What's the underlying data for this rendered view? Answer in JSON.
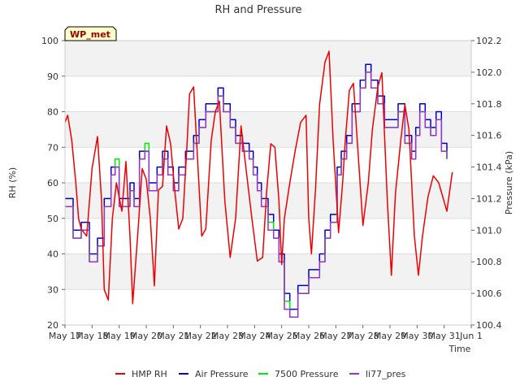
{
  "chart_data": {
    "type": "line",
    "title": "RH and Pressure",
    "xlabel": "Time",
    "ylabel": "RH (%)",
    "y2label": "Pressure (kPa)",
    "badge": "WP_met",
    "x_ticks": [
      "May 17",
      "May 18",
      "May 19",
      "May 20",
      "May 21",
      "May 22",
      "May 23",
      "May 24",
      "May 25",
      "May 26",
      "May 27",
      "May 28",
      "May 29",
      "May 30",
      "May 31",
      "Jun 1"
    ],
    "ylim": [
      20,
      100
    ],
    "y_ticks": [
      "20",
      "30",
      "40",
      "50",
      "60",
      "70",
      "80",
      "90",
      "100"
    ],
    "y2lim": [
      100.4,
      102.2
    ],
    "y2_ticks": [
      "100.4",
      "100.6",
      "100.8",
      "101.0",
      "101.2",
      "101.4",
      "101.6",
      "101.8",
      "102.0",
      "102.2"
    ],
    "grid": true,
    "legend_position": "bottom",
    "series": [
      {
        "name": "HMP RH",
        "axis": "left",
        "color": "#ee0000",
        "x": [
          0.0,
          0.1,
          0.25,
          0.4,
          0.5,
          0.6,
          0.8,
          1.0,
          1.2,
          1.35,
          1.45,
          1.6,
          1.75,
          1.9,
          2.1,
          2.25,
          2.4,
          2.5,
          2.7,
          2.85,
          3.0,
          3.15,
          3.3,
          3.45,
          3.6,
          3.75,
          3.9,
          4.05,
          4.2,
          4.35,
          4.5,
          4.6,
          4.75,
          4.9,
          5.05,
          5.2,
          5.4,
          5.55,
          5.7,
          5.9,
          6.1,
          6.3,
          6.5,
          6.7,
          6.9,
          7.1,
          7.3,
          7.45,
          7.6,
          7.75,
          7.9,
          8.0,
          8.1,
          8.3,
          8.5,
          8.7,
          8.9,
          9.0,
          9.1,
          9.25,
          9.4,
          9.6,
          9.75,
          9.9,
          10.1,
          10.25,
          10.35,
          10.5,
          10.65,
          10.85,
          11.0,
          11.2,
          11.35,
          11.55,
          11.7,
          11.9,
          12.05,
          12.2,
          12.4,
          12.55,
          12.7,
          12.9,
          13.05,
          13.2,
          13.4,
          13.6,
          13.8,
          13.95,
          14.1,
          14.3
        ],
        "values": [
          77,
          79,
          72,
          60,
          50,
          47,
          45,
          64,
          73,
          55,
          30,
          27,
          50,
          60,
          52,
          66,
          45,
          26,
          47,
          64,
          61,
          50,
          31,
          58,
          59,
          76,
          71,
          58,
          47,
          50,
          70,
          85,
          87,
          66,
          45,
          47,
          72,
          80,
          83,
          55,
          39,
          50,
          76,
          63,
          50,
          38,
          39,
          58,
          71,
          70,
          55,
          37,
          50,
          60,
          69,
          77,
          79,
          50,
          40,
          58,
          82,
          94,
          97,
          72,
          46,
          60,
          72,
          86,
          88,
          65,
          48,
          60,
          75,
          87,
          91,
          55,
          34,
          57,
          72,
          82,
          75,
          45,
          34,
          45,
          56,
          62,
          60,
          56,
          52,
          63
        ],
        "id": "hmp"
      },
      {
        "name": "Air Pressure",
        "axis": "right",
        "color": "#0000cc",
        "x": [
          0.0,
          0.3,
          0.6,
          0.9,
          1.2,
          1.45,
          1.7,
          1.85,
          2.0,
          2.2,
          2.4,
          2.55,
          2.75,
          2.95,
          3.1,
          3.4,
          3.6,
          3.8,
          4.0,
          4.2,
          4.45,
          4.75,
          4.95,
          5.2,
          5.4,
          5.65,
          5.85,
          6.1,
          6.3,
          6.55,
          6.8,
          6.95,
          7.1,
          7.25,
          7.5,
          7.7,
          7.9,
          8.1,
          8.3,
          8.6,
          9.0,
          9.4,
          9.6,
          9.8,
          10.05,
          10.2,
          10.4,
          10.6,
          10.9,
          11.1,
          11.3,
          11.55,
          11.8,
          12.05,
          12.3,
          12.55,
          12.8,
          12.95,
          13.1,
          13.3,
          13.5,
          13.7,
          13.9,
          14.1
        ],
        "values": [
          101.2,
          101.0,
          101.05,
          100.85,
          100.95,
          101.2,
          101.4,
          101.4,
          101.2,
          101.2,
          101.3,
          101.2,
          101.5,
          101.5,
          101.3,
          101.4,
          101.5,
          101.4,
          101.3,
          101.4,
          101.5,
          101.6,
          101.7,
          101.8,
          101.8,
          101.9,
          101.8,
          101.7,
          101.6,
          101.55,
          101.5,
          101.4,
          101.3,
          101.2,
          101.1,
          101.0,
          100.85,
          100.6,
          100.5,
          100.65,
          100.75,
          100.85,
          101.0,
          101.1,
          101.4,
          101.5,
          101.6,
          101.8,
          101.95,
          102.05,
          101.95,
          101.85,
          101.7,
          101.7,
          101.8,
          101.6,
          101.5,
          101.65,
          101.8,
          101.7,
          101.65,
          101.75,
          101.55,
          101.5
        ],
        "id": "air"
      },
      {
        "name": "7500 Pressure",
        "axis": "right",
        "color": "#00ee00",
        "x": [
          0.0,
          0.3,
          0.6,
          0.9,
          1.2,
          1.45,
          1.7,
          1.85,
          2.0,
          2.2,
          2.4,
          2.55,
          2.75,
          2.95,
          3.1,
          3.4,
          3.6,
          3.8,
          4.0,
          4.2,
          4.45,
          4.75,
          4.95,
          5.2,
          5.4,
          5.65,
          5.85,
          6.1,
          6.3,
          6.55,
          6.8,
          6.95,
          7.1,
          7.25,
          7.5,
          7.7,
          7.9,
          8.1,
          8.3,
          8.6,
          9.0,
          9.4,
          9.6,
          9.8,
          10.05,
          10.2,
          10.4,
          10.6,
          10.9,
          11.1,
          11.3,
          11.55,
          11.8,
          12.05,
          12.3,
          12.55,
          12.8,
          12.95,
          13.1,
          13.3,
          13.5,
          13.7,
          13.9,
          14.1
        ],
        "values": [
          101.15,
          100.95,
          101.0,
          100.8,
          100.9,
          101.15,
          101.35,
          101.45,
          101.15,
          101.15,
          101.25,
          101.15,
          101.45,
          101.55,
          101.25,
          101.35,
          101.45,
          101.35,
          101.25,
          101.35,
          101.45,
          101.55,
          101.65,
          101.75,
          101.75,
          101.85,
          101.75,
          101.65,
          101.55,
          101.5,
          101.45,
          101.35,
          101.25,
          101.15,
          101.05,
          100.95,
          100.8,
          100.55,
          100.45,
          100.6,
          100.7,
          100.8,
          100.95,
          101.05,
          101.35,
          101.45,
          101.55,
          101.75,
          101.9,
          102.0,
          101.9,
          101.8,
          101.65,
          101.65,
          101.75,
          101.55,
          101.45,
          101.6,
          101.75,
          101.65,
          101.6,
          101.7,
          101.5,
          101.45
        ],
        "id": "p7500"
      },
      {
        "name": "li77_pres",
        "axis": "right",
        "color": "#9933cc",
        "x": [
          0.0,
          0.3,
          0.6,
          0.9,
          1.2,
          1.45,
          1.7,
          1.85,
          2.0,
          2.2,
          2.4,
          2.55,
          2.75,
          2.95,
          3.1,
          3.4,
          3.6,
          3.8,
          4.0,
          4.2,
          4.45,
          4.75,
          4.95,
          5.2,
          5.4,
          5.65,
          5.85,
          6.1,
          6.3,
          6.55,
          6.8,
          6.95,
          7.1,
          7.25,
          7.5,
          7.7,
          7.9,
          8.1,
          8.3,
          8.6,
          9.0,
          9.4,
          9.6,
          9.8,
          10.05,
          10.2,
          10.4,
          10.6,
          10.9,
          11.1,
          11.3,
          11.55,
          11.8,
          12.05,
          12.3,
          12.55,
          12.8,
          12.95,
          13.1,
          13.3,
          13.5,
          13.7,
          13.9,
          14.1
        ],
        "values": [
          101.15,
          100.95,
          101.0,
          100.8,
          100.9,
          101.15,
          101.35,
          101.4,
          101.15,
          101.15,
          101.25,
          101.15,
          101.45,
          101.5,
          101.25,
          101.35,
          101.45,
          101.35,
          101.25,
          101.35,
          101.45,
          101.55,
          101.65,
          101.75,
          101.75,
          101.85,
          101.75,
          101.65,
          101.55,
          101.5,
          101.45,
          101.35,
          101.25,
          101.15,
          101.0,
          100.95,
          100.8,
          100.5,
          100.45,
          100.6,
          100.7,
          100.8,
          100.95,
          101.05,
          101.35,
          101.45,
          101.55,
          101.75,
          101.9,
          102.0,
          101.9,
          101.8,
          101.65,
          101.65,
          101.75,
          101.55,
          101.45,
          101.6,
          101.75,
          101.65,
          101.6,
          101.7,
          101.5,
          101.45
        ],
        "id": "li77"
      }
    ]
  }
}
